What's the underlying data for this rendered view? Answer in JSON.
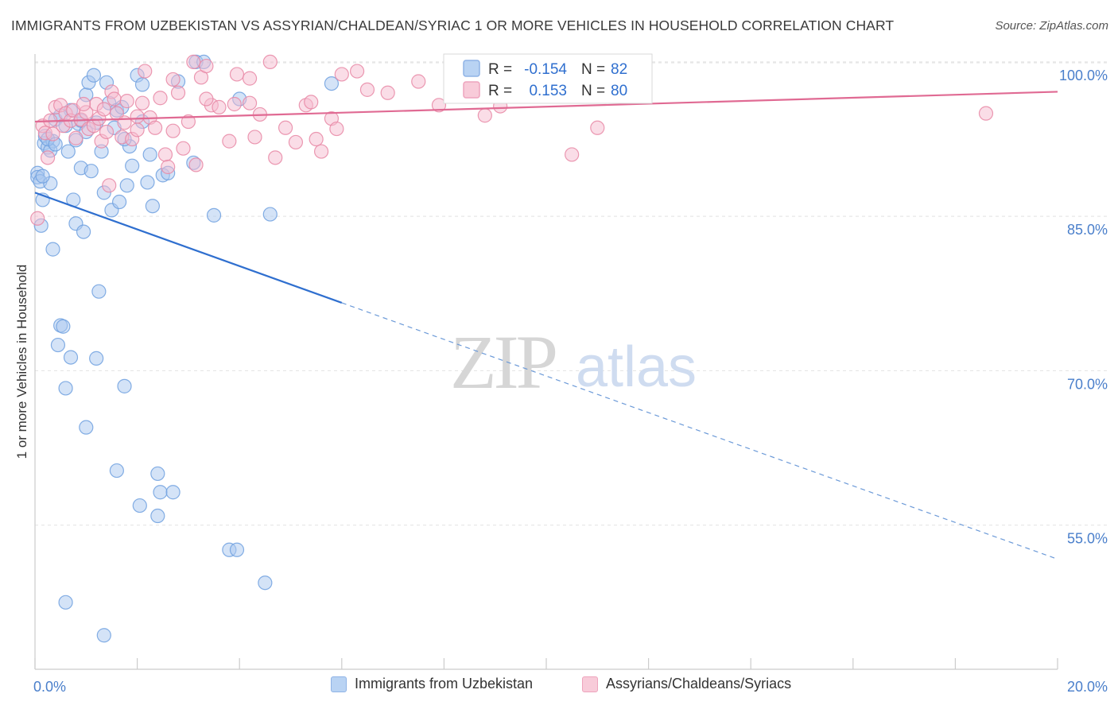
{
  "title": "IMMIGRANTS FROM UZBEKISTAN VS ASSYRIAN/CHALDEAN/SYRIAC 1 OR MORE VEHICLES IN HOUSEHOLD CORRELATION CHART",
  "source": "Source: ZipAtlas.com",
  "watermark": {
    "zip": "ZIP",
    "atlas": "atlas"
  },
  "chart_data": {
    "type": "scatter",
    "ylabel": "1 or more Vehicles in Household",
    "xlim": [
      0,
      20
    ],
    "ylim": [
      41,
      102
    ],
    "x_tick_labels": [
      {
        "value": 0,
        "label": "0.0%"
      },
      {
        "value": 20,
        "label": "20.0%"
      }
    ],
    "y_tick_labels": [
      {
        "value": 100,
        "label": "100.0%"
      },
      {
        "value": 85,
        "label": "85.0%"
      },
      {
        "value": 70,
        "label": "70.0%"
      },
      {
        "value": 55,
        "label": "55.0%"
      }
    ],
    "x_minor_ticks": [
      0,
      2,
      4,
      6,
      8,
      10,
      12,
      14,
      16,
      18,
      20
    ],
    "grid": true,
    "legend_position": "top-center",
    "legend": [
      {
        "r_label": "R =",
        "r_value": "-0.154",
        "n_label": "N =",
        "n_value": "82"
      },
      {
        "r_label": "R =",
        "r_value": "0.153",
        "n_label": "N =",
        "n_value": "80"
      }
    ],
    "series": [
      {
        "name": "Immigrants from Uzbekistan",
        "color": "#6fa0df",
        "fill": "#a9c8f0",
        "trend": {
          "x0": 0,
          "y0": 87.3,
          "x1": 6.0,
          "y1": 76.6,
          "dash_x1": 20,
          "dash_y1": 51.7
        },
        "points": [
          [
            0.05,
            89.2
          ],
          [
            0.05,
            88.8
          ],
          [
            0.1,
            88.4
          ],
          [
            0.12,
            84.1
          ],
          [
            0.15,
            86.6
          ],
          [
            0.18,
            92.1
          ],
          [
            0.2,
            92.8
          ],
          [
            0.25,
            91.7
          ],
          [
            0.3,
            88.2
          ],
          [
            0.35,
            81.8
          ],
          [
            0.35,
            92.3
          ],
          [
            0.4,
            94.4
          ],
          [
            0.45,
            72.5
          ],
          [
            0.5,
            74.4
          ],
          [
            0.55,
            74.3
          ],
          [
            0.6,
            68.3
          ],
          [
            0.65,
            91.3
          ],
          [
            0.7,
            95.3
          ],
          [
            0.7,
            71.3
          ],
          [
            0.75,
            86.6
          ],
          [
            0.8,
            84.3
          ],
          [
            0.85,
            94.0
          ],
          [
            0.9,
            89.7
          ],
          [
            0.95,
            83.5
          ],
          [
            1.0,
            96.8
          ],
          [
            1.0,
            93.2
          ],
          [
            1.05,
            98.0
          ],
          [
            1.1,
            89.4
          ],
          [
            1.15,
            98.7
          ],
          [
            1.2,
            94.1
          ],
          [
            1.2,
            71.2
          ],
          [
            1.25,
            77.7
          ],
          [
            1.3,
            91.3
          ],
          [
            1.35,
            87.3
          ],
          [
            1.4,
            98.0
          ],
          [
            1.45,
            96.0
          ],
          [
            1.5,
            85.6
          ],
          [
            1.55,
            93.6
          ],
          [
            1.6,
            95.3
          ],
          [
            1.65,
            86.4
          ],
          [
            1.7,
            95.6
          ],
          [
            1.75,
            68.5
          ],
          [
            1.8,
            88.0
          ],
          [
            1.85,
            91.8
          ],
          [
            1.9,
            89.9
          ],
          [
            2.0,
            98.7
          ],
          [
            2.05,
            56.9
          ],
          [
            2.1,
            97.8
          ],
          [
            2.2,
            88.3
          ],
          [
            2.25,
            91.0
          ],
          [
            2.3,
            86.0
          ],
          [
            2.4,
            60.0
          ],
          [
            2.45,
            58.2
          ],
          [
            2.5,
            89.0
          ],
          [
            2.6,
            89.2
          ],
          [
            2.7,
            58.2
          ],
          [
            2.8,
            98.1
          ],
          [
            3.1,
            90.2
          ],
          [
            3.15,
            100.0
          ],
          [
            3.3,
            100.0
          ],
          [
            3.5,
            85.1
          ],
          [
            3.8,
            52.6
          ],
          [
            3.95,
            52.6
          ],
          [
            4.0,
            96.4
          ],
          [
            4.5,
            49.4
          ],
          [
            4.6,
            85.2
          ],
          [
            5.8,
            97.9
          ],
          [
            0.6,
            47.5
          ],
          [
            1.35,
            44.3
          ],
          [
            0.3,
            91.4
          ],
          [
            0.5,
            94.8
          ],
          [
            0.15,
            88.9
          ],
          [
            2.4,
            55.9
          ],
          [
            1.6,
            60.3
          ],
          [
            2.1,
            94.2
          ],
          [
            0.8,
            92.4
          ],
          [
            0.25,
            92.5
          ],
          [
            1.0,
            64.5
          ],
          [
            0.4,
            92.0
          ],
          [
            0.9,
            94.3
          ],
          [
            1.75,
            92.5
          ],
          [
            0.6,
            93.8
          ]
        ]
      },
      {
        "name": "Assyrians/Chaldeans/Syriacs",
        "color": "#e887a5",
        "fill": "#f5bcd0",
        "trend": {
          "x0": 0,
          "y0": 94.2,
          "x1": 20,
          "y1": 97.1
        },
        "points": [
          [
            0.05,
            84.8
          ],
          [
            0.15,
            93.8
          ],
          [
            0.2,
            93.1
          ],
          [
            0.3,
            94.3
          ],
          [
            0.35,
            93.0
          ],
          [
            0.4,
            95.6
          ],
          [
            0.5,
            95.8
          ],
          [
            0.55,
            93.8
          ],
          [
            0.6,
            95.0
          ],
          [
            0.7,
            94.3
          ],
          [
            0.75,
            95.3
          ],
          [
            0.8,
            92.6
          ],
          [
            0.9,
            94.4
          ],
          [
            1.0,
            95.1
          ],
          [
            1.05,
            93.5
          ],
          [
            1.15,
            93.8
          ],
          [
            1.2,
            95.9
          ],
          [
            1.25,
            94.5
          ],
          [
            1.3,
            92.3
          ],
          [
            1.35,
            95.4
          ],
          [
            1.4,
            93.2
          ],
          [
            1.5,
            97.1
          ],
          [
            1.55,
            96.4
          ],
          [
            1.6,
            95.0
          ],
          [
            1.7,
            92.7
          ],
          [
            1.75,
            94.1
          ],
          [
            1.8,
            96.2
          ],
          [
            1.9,
            92.5
          ],
          [
            2.0,
            93.4
          ],
          [
            2.1,
            96.0
          ],
          [
            2.15,
            99.1
          ],
          [
            2.25,
            94.6
          ],
          [
            2.35,
            93.6
          ],
          [
            2.45,
            96.5
          ],
          [
            2.55,
            91.0
          ],
          [
            2.6,
            89.8
          ],
          [
            2.7,
            93.3
          ],
          [
            2.8,
            97.0
          ],
          [
            2.9,
            91.6
          ],
          [
            3.0,
            94.2
          ],
          [
            3.1,
            100.0
          ],
          [
            3.15,
            90.0
          ],
          [
            3.25,
            98.5
          ],
          [
            3.35,
            99.6
          ],
          [
            3.45,
            95.8
          ],
          [
            3.6,
            95.6
          ],
          [
            3.8,
            92.3
          ],
          [
            3.9,
            95.9
          ],
          [
            3.95,
            98.8
          ],
          [
            4.2,
            96.0
          ],
          [
            4.3,
            92.7
          ],
          [
            4.4,
            94.9
          ],
          [
            4.6,
            100.0
          ],
          [
            4.7,
            90.7
          ],
          [
            4.9,
            93.6
          ],
          [
            5.1,
            92.2
          ],
          [
            5.3,
            95.8
          ],
          [
            5.5,
            92.5
          ],
          [
            5.6,
            91.3
          ],
          [
            5.8,
            94.5
          ],
          [
            5.9,
            93.5
          ],
          [
            6.0,
            98.8
          ],
          [
            6.3,
            99.1
          ],
          [
            6.5,
            97.3
          ],
          [
            6.9,
            97.0
          ],
          [
            7.5,
            98.1
          ],
          [
            7.9,
            95.8
          ],
          [
            8.8,
            94.8
          ],
          [
            9.1,
            95.7
          ],
          [
            10.5,
            91.0
          ],
          [
            11.0,
            93.6
          ],
          [
            18.6,
            95.0
          ],
          [
            0.25,
            90.7
          ],
          [
            1.45,
            88.0
          ],
          [
            2.7,
            98.3
          ],
          [
            3.35,
            96.4
          ],
          [
            4.2,
            98.4
          ],
          [
            0.95,
            95.9
          ],
          [
            2.0,
            94.7
          ],
          [
            5.4,
            96.1
          ]
        ]
      }
    ]
  }
}
